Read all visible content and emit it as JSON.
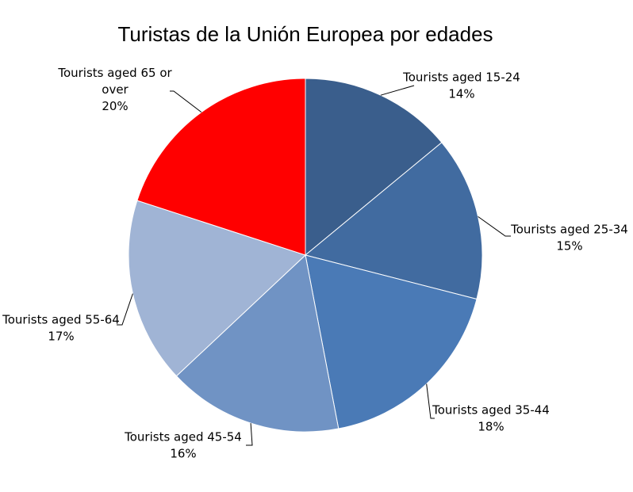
{
  "chart_data": {
    "type": "pie",
    "title": "Turistas de la Unión Europea por edades",
    "slices": [
      {
        "label_lines": [
          "Tourists aged 15-24"
        ],
        "percent_label": "14%",
        "value": 14,
        "color": "#3A5E8C"
      },
      {
        "label_lines": [
          "Tourists aged 25-34"
        ],
        "percent_label": "15%",
        "value": 15,
        "color": "#416BA0"
      },
      {
        "label_lines": [
          "Tourists aged 35-44"
        ],
        "percent_label": "18%",
        "value": 18,
        "color": "#4A7AB6"
      },
      {
        "label_lines": [
          "Tourists aged 45-54"
        ],
        "percent_label": "16%",
        "value": 16,
        "color": "#7093C4"
      },
      {
        "label_lines": [
          "Tourists aged 55-64"
        ],
        "percent_label": "17%",
        "value": 17,
        "color": "#A0B4D5"
      },
      {
        "label_lines": [
          "Tourists aged 65 or",
          "over"
        ],
        "percent_label": "20%",
        "value": 20,
        "color": "#FF0000"
      }
    ],
    "start_angle": "12 o'clock",
    "direction": "clockwise",
    "legend": "none"
  }
}
